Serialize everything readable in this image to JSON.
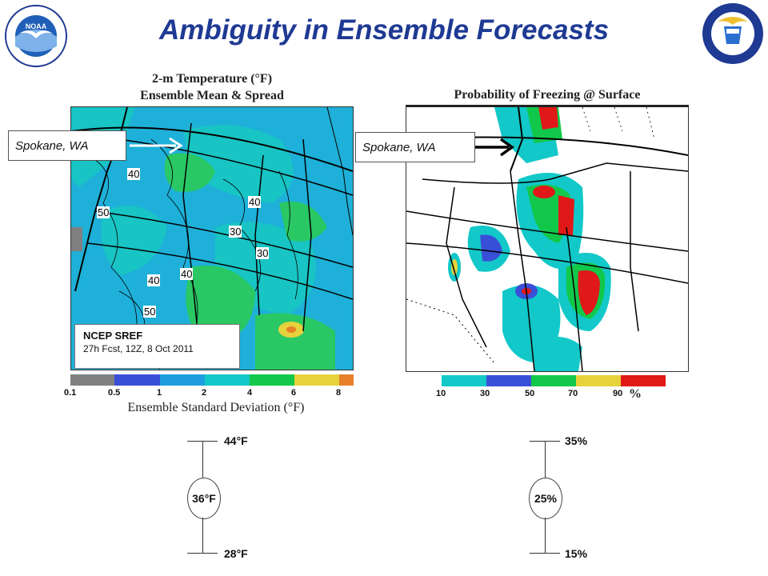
{
  "title": "Ambiguity in Ensemble Forecasts",
  "left_panel": {
    "title_line1": "2-m Temperature (°F)",
    "title_line2": "Ensemble Mean & Spread",
    "callout": "Spokane, WA",
    "contour_labels": [
      "40",
      "50",
      "40",
      "30",
      "30",
      "40",
      "50",
      "40"
    ],
    "source_title": "NCEP SREF",
    "source_detail": "27h Fcst, 12Z, 8 Oct 2011",
    "colorbar": {
      "colors": [
        "#808080",
        "#3a4fd8",
        "#1e9ee0",
        "#12c8c8",
        "#12c84a",
        "#e6d23c",
        "#e8802a"
      ],
      "ticks": [
        "0.1",
        "0.5",
        "1",
        "2",
        "4",
        "6",
        "8"
      ]
    },
    "colorbar_label": "Ensemble Standard Deviation (°F)"
  },
  "right_panel": {
    "title": "Probability of Freezing @ Surface",
    "callout": "Spokane, WA",
    "colorbar": {
      "colors": [
        "#12c8c8",
        "#3a4fd8",
        "#12c84a",
        "#e6d23c",
        "#e01818"
      ],
      "ticks": [
        "10",
        "30",
        "50",
        "70",
        "90"
      ],
      "unit": "%"
    }
  },
  "uncertainty_left": {
    "upper": "44°F",
    "center": "36°F",
    "lower": "28°F"
  },
  "uncertainty_right": {
    "upper": "35%",
    "center": "25%",
    "lower": "15%"
  }
}
